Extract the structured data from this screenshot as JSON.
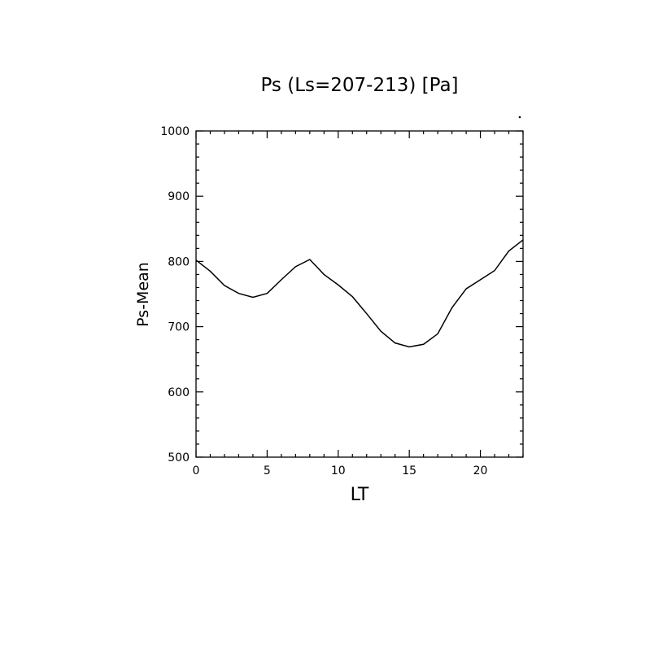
{
  "chart_data": {
    "type": "line",
    "title": "Ps (Ls=207-213) [Pa]",
    "xlabel": "LT",
    "ylabel": "Ps-Mean",
    "xlim": [
      0,
      23
    ],
    "ylim": [
      500,
      1000
    ],
    "x_ticks": [
      0,
      5,
      10,
      15,
      20
    ],
    "x_tick_labels": [
      "0",
      "5",
      "10",
      "15",
      "20"
    ],
    "y_ticks": [
      500,
      600,
      700,
      800,
      900,
      1000
    ],
    "y_tick_labels": [
      "500",
      "600",
      "700",
      "800",
      "900",
      "1000"
    ],
    "grid": false,
    "series": [
      {
        "x": [
          0,
          1,
          2,
          3,
          4,
          5,
          6,
          7,
          8,
          9,
          10,
          11,
          12,
          13,
          14,
          15,
          16,
          17,
          18,
          19,
          20,
          21,
          22,
          23
        ],
        "values": [
          802,
          785,
          763,
          751,
          745,
          751,
          772,
          792,
          803,
          780,
          764,
          746,
          720,
          693,
          675,
          669,
          673,
          689,
          729,
          758,
          772,
          786,
          816,
          833
        ]
      }
    ],
    "line_color": "#000000"
  }
}
